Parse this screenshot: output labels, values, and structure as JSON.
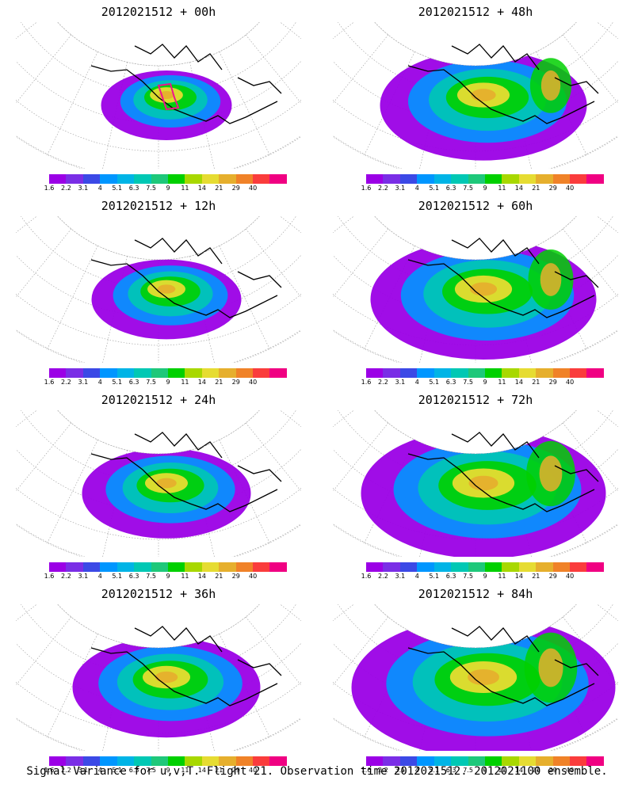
{
  "caption": "Signal Variance for u,v,T. Flight 21. Observation time 2012021512. 2012021100 ensemble.",
  "colorbar": {
    "colors": [
      "#9b00e6",
      "#7a2ee6",
      "#3b49e6",
      "#0096ff",
      "#00b4e6",
      "#00c8b4",
      "#1ec87a",
      "#00d000",
      "#a8d800",
      "#e6dc32",
      "#e6af2d",
      "#f08228",
      "#fa3c3c",
      "#f00082"
    ],
    "labels": [
      "1.6",
      "2.2",
      "3.1",
      "4",
      "5.1",
      "6.3",
      "7.5",
      "9",
      "11",
      "14",
      "21",
      "29",
      "40"
    ]
  },
  "panels": [
    {
      "title": "2012021512 + 00h"
    },
    {
      "title": "2012021512 + 48h"
    },
    {
      "title": "2012021512 + 12h"
    },
    {
      "title": "2012021512 + 60h"
    },
    {
      "title": "2012021512 + 24h"
    },
    {
      "title": "2012021512 + 72h"
    },
    {
      "title": "2012021512 + 36h"
    },
    {
      "title": "2012021512 + 84h"
    }
  ]
}
